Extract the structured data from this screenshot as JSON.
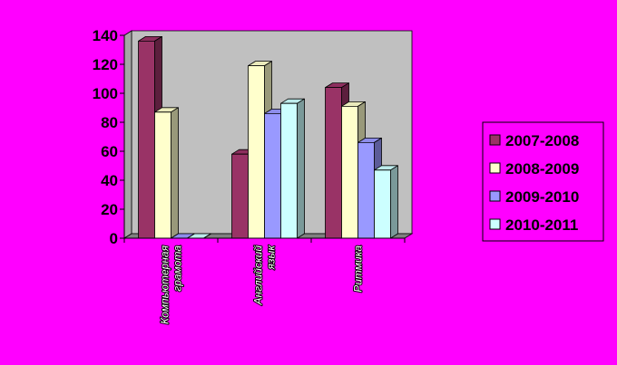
{
  "chart_data": {
    "type": "bar",
    "categories": [
      [
        "Компьютерная",
        "грамота"
      ],
      [
        "Английский",
        "язык"
      ],
      [
        "Ритмика"
      ]
    ],
    "series": [
      {
        "name": "2007-2008",
        "values": [
          136,
          58,
          104
        ],
        "color": "#993366"
      },
      {
        "name": "2008-2009",
        "values": [
          87,
          119,
          91
        ],
        "color": "#ffffcc"
      },
      {
        "name": "2009-2010",
        "values": [
          0,
          86,
          66
        ],
        "color": "#9999ff"
      },
      {
        "name": "2010-2011",
        "values": [
          0,
          93,
          47
        ],
        "color": "#ccffff"
      }
    ],
    "yticks": [
      "0",
      "20",
      "40",
      "60",
      "80",
      "100",
      "120",
      "140"
    ],
    "ylim": [
      0,
      140
    ],
    "grid": false,
    "legend": "right",
    "three_d": true
  }
}
